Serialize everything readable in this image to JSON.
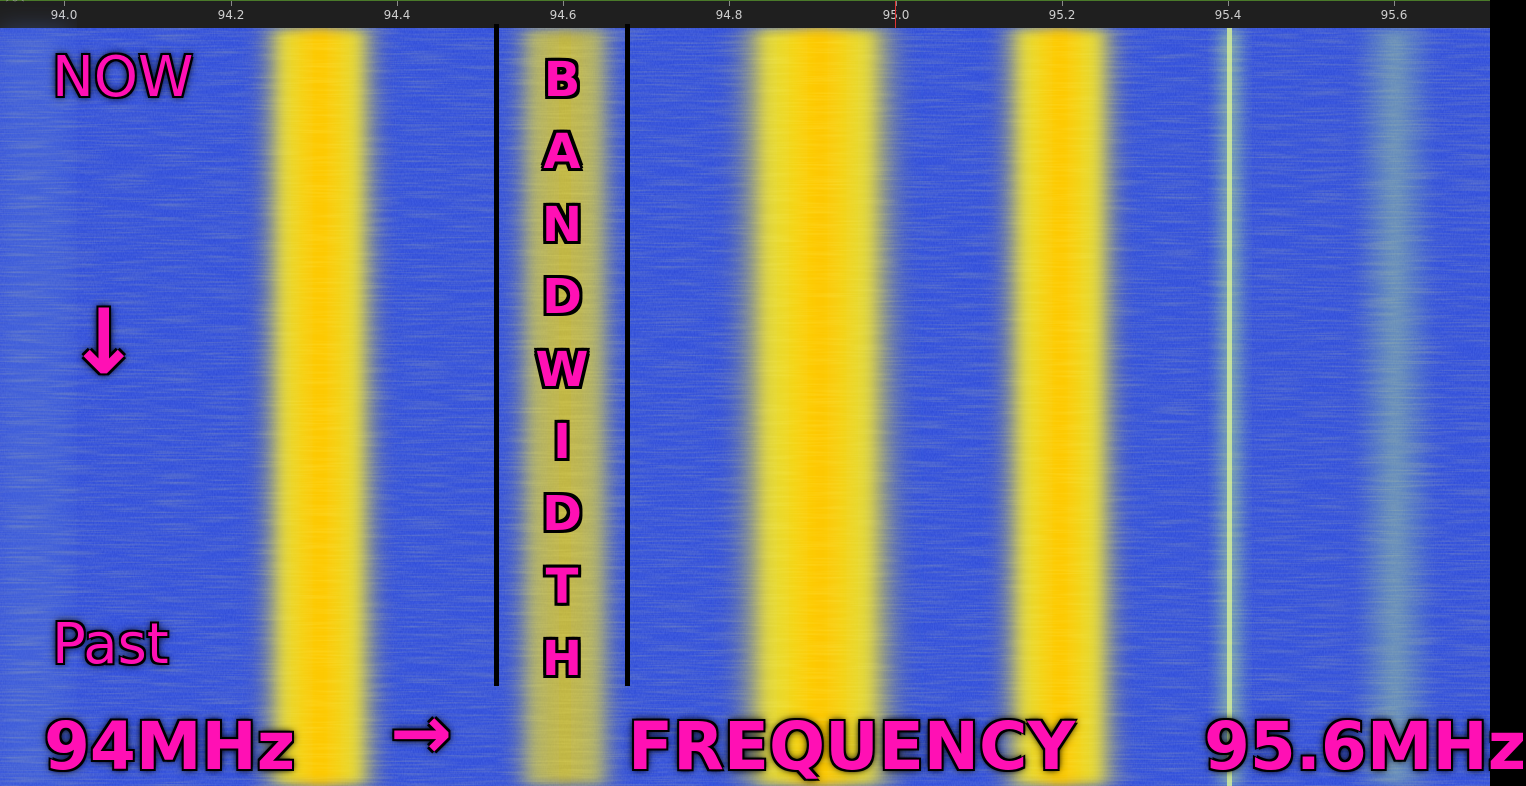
{
  "ruler": {
    "ticks": [
      "94.0",
      "94.2",
      "94.4",
      "94.6",
      "94.8",
      "95.0",
      "95.2",
      "95.4",
      "95.6"
    ]
  },
  "overlay": {
    "now_label": "NOW",
    "past_label": "Past",
    "down_arrow": "↓",
    "right_arrow": "→",
    "start_freq": "94MHz",
    "frequency_label": "FREQUENCY",
    "end_freq": "95.6MHz",
    "bandwidth_letters": [
      "B",
      "A",
      "N",
      "D",
      "W",
      "I",
      "D",
      "T",
      "H"
    ]
  },
  "colors": {
    "background": "#2a47d4",
    "signal": "#ffee22",
    "signal_core": "#ffb000",
    "annotation": "#ff10b4",
    "ruler_bg": "#1f1f1f"
  }
}
